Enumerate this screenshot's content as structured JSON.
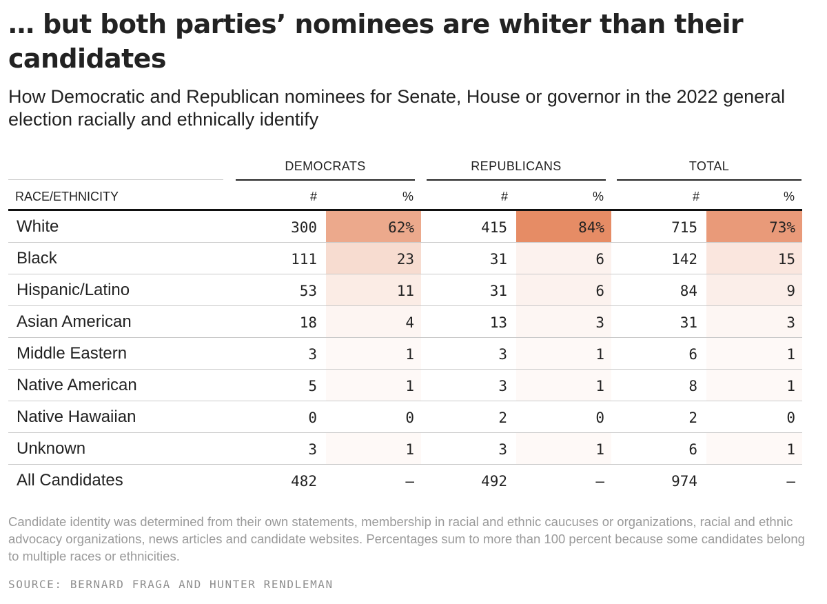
{
  "chart_data": {
    "type": "table",
    "title": "… but both parties’ nominees are whiter than their candidates",
    "subtitle": "How Democratic and Republican nominees for Senate, House or governor in the 2022 general election racially and ethnically identify",
    "groups": [
      "DEMOCRATS",
      "REPUBLICANS",
      "TOTAL"
    ],
    "row_header": "RACE/ETHNICITY",
    "count_header": "#",
    "pct_header": "%",
    "rows": [
      {
        "label": "White",
        "dem_n": "300",
        "dem_pct": "62%",
        "rep_n": "415",
        "rep_pct": "84%",
        "tot_n": "715",
        "tot_pct": "73%"
      },
      {
        "label": "Black",
        "dem_n": "111",
        "dem_pct": "23",
        "rep_n": "31",
        "rep_pct": "6",
        "tot_n": "142",
        "tot_pct": "15"
      },
      {
        "label": "Hispanic/Latino",
        "dem_n": "53",
        "dem_pct": "11",
        "rep_n": "31",
        "rep_pct": "6",
        "tot_n": "84",
        "tot_pct": "9"
      },
      {
        "label": "Asian American",
        "dem_n": "18",
        "dem_pct": "4",
        "rep_n": "13",
        "rep_pct": "3",
        "tot_n": "31",
        "tot_pct": "3"
      },
      {
        "label": "Middle Eastern",
        "dem_n": "3",
        "dem_pct": "1",
        "rep_n": "3",
        "rep_pct": "1",
        "tot_n": "6",
        "tot_pct": "1"
      },
      {
        "label": "Native American",
        "dem_n": "5",
        "dem_pct": "1",
        "rep_n": "3",
        "rep_pct": "1",
        "tot_n": "8",
        "tot_pct": "1"
      },
      {
        "label": "Native Hawaiian",
        "dem_n": "0",
        "dem_pct": "0",
        "rep_n": "2",
        "rep_pct": "0",
        "tot_n": "2",
        "tot_pct": "0"
      },
      {
        "label": "Unknown",
        "dem_n": "3",
        "dem_pct": "1",
        "rep_n": "3",
        "rep_pct": "1",
        "tot_n": "6",
        "tot_pct": "1"
      },
      {
        "label": "All Candidates",
        "dem_n": "482",
        "dem_pct": "—",
        "rep_n": "492",
        "rep_pct": "—",
        "tot_n": "974",
        "tot_pct": "—"
      }
    ],
    "heat_color": "#e5875f",
    "note": "Candidate identity was determined from their own statements, membership in racial and ethnic caucuses or organizations, racial and ethnic advocacy organizations, news articles and candidate websites. Percentages sum to more than 100 percent because some candidates belong to multiple races or ethnicities.",
    "source": "SOURCE: BERNARD FRAGA AND HUNTER RENDLEMAN"
  }
}
